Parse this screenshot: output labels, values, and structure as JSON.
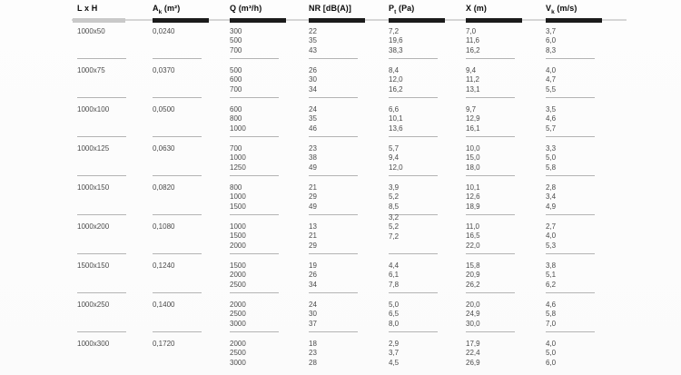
{
  "table": {
    "columns": [
      {
        "pre": "L x H",
        "sub": "",
        "post": ""
      },
      {
        "pre": "A",
        "sub": "k",
        "post": " (m²)"
      },
      {
        "pre": "Q",
        "sub": "",
        "post": " (m³/h)"
      },
      {
        "pre": "NR [dB(A)]",
        "sub": "",
        "post": ""
      },
      {
        "pre": "P",
        "sub": "t",
        "post": " (Pa)"
      },
      {
        "pre": "X",
        "sub": "",
        "post": " (m)"
      },
      {
        "pre": "V",
        "sub": "k",
        "post": " (m/s)"
      }
    ],
    "groups": [
      {
        "size": "1000x50",
        "ak": "0,0240",
        "q": [
          "300",
          "500",
          "700"
        ],
        "nr": [
          "22",
          "35",
          "43"
        ],
        "pt": [
          "7,2",
          "19,6",
          "38,3"
        ],
        "x": [
          "7,0",
          "11,6",
          "16,2"
        ],
        "vk": [
          "3,7",
          "6,0",
          "8,3"
        ]
      },
      {
        "size": "1000x75",
        "ak": "0,0370",
        "q": [
          "500",
          "600",
          "700"
        ],
        "nr": [
          "26",
          "30",
          "34"
        ],
        "pt": [
          "8,4",
          "12,0",
          "16,2"
        ],
        "x": [
          "9,4",
          "11,2",
          "13,1"
        ],
        "vk": [
          "4,0",
          "4,7",
          "5,5"
        ]
      },
      {
        "size": "1000x100",
        "ak": "0,0500",
        "q": [
          "600",
          "800",
          "1000"
        ],
        "nr": [
          "24",
          "35",
          "46"
        ],
        "pt": [
          "6,6",
          "10,1",
          "13,6"
        ],
        "x": [
          "9,7",
          "12,9",
          "16,1"
        ],
        "vk": [
          "3,5",
          "4,6",
          "5,7"
        ]
      },
      {
        "size": "1000x125",
        "ak": "0,0630",
        "q": [
          "700",
          "1000",
          "1250"
        ],
        "nr": [
          "23",
          "38",
          "49"
        ],
        "pt": [
          "5,7",
          "9,4",
          "12,0"
        ],
        "x": [
          "10,0",
          "15,0",
          "18,0"
        ],
        "vk": [
          "3,3",
          "5,0",
          "5,8"
        ]
      },
      {
        "size": "1000x150",
        "ak": "0,0820",
        "q": [
          "800",
          "1000",
          "1500"
        ],
        "nr": [
          "21",
          "29",
          "49"
        ],
        "pt": [
          "3,9",
          "5,2",
          "8,5"
        ],
        "x": [
          "10,1",
          "12,6",
          "18,9"
        ],
        "vk": [
          "2,8",
          "3,4",
          "4,9"
        ]
      },
      {
        "size": "1000x200",
        "ak": "0,1080",
        "q": [
          "1000",
          "1500",
          "2000"
        ],
        "nr": [
          "13",
          "21",
          "29"
        ],
        "pt": [
          "3,2",
          "5,2",
          "7,2"
        ],
        "x": [
          "11,0",
          "16,5",
          "22,0"
        ],
        "vk": [
          "2,7",
          "4,0",
          "5,3"
        ],
        "pt_shift": true
      },
      {
        "size": "1500x150",
        "ak": "0,1240",
        "q": [
          "1500",
          "2000",
          "2500"
        ],
        "nr": [
          "19",
          "26",
          "34"
        ],
        "pt": [
          "4,4",
          "6,1",
          "7,8"
        ],
        "x": [
          "15,8",
          "20,9",
          "26,2"
        ],
        "vk": [
          "3,8",
          "5,1",
          "6,2"
        ]
      },
      {
        "size": "1000x250",
        "ak": "0,1400",
        "q": [
          "2000",
          "2500",
          "3000"
        ],
        "nr": [
          "24",
          "30",
          "37"
        ],
        "pt": [
          "5,0",
          "6,5",
          "8,0"
        ],
        "x": [
          "20,0",
          "24,9",
          "30,0"
        ],
        "vk": [
          "4,6",
          "5,8",
          "7,0"
        ]
      },
      {
        "size": "1000x300",
        "ak": "0,1720",
        "q": [
          "2000",
          "2500",
          "3000"
        ],
        "nr": [
          "18",
          "23",
          "28"
        ],
        "pt": [
          "2,9",
          "3,7",
          "4,5"
        ],
        "x": [
          "17,9",
          "22,4",
          "26,9"
        ],
        "vk": [
          "4,0",
          "5,0",
          "6,0"
        ]
      }
    ]
  },
  "colors": {
    "header_bar_black": "#1b1b1b",
    "header_bar_gray": "#c9c9c9",
    "header_rule": "#d6d6d6",
    "separator": "#b4b4b4",
    "text": "#4b4b4b",
    "header_text": "#0a0a0a",
    "background": "#fdfdfd"
  }
}
